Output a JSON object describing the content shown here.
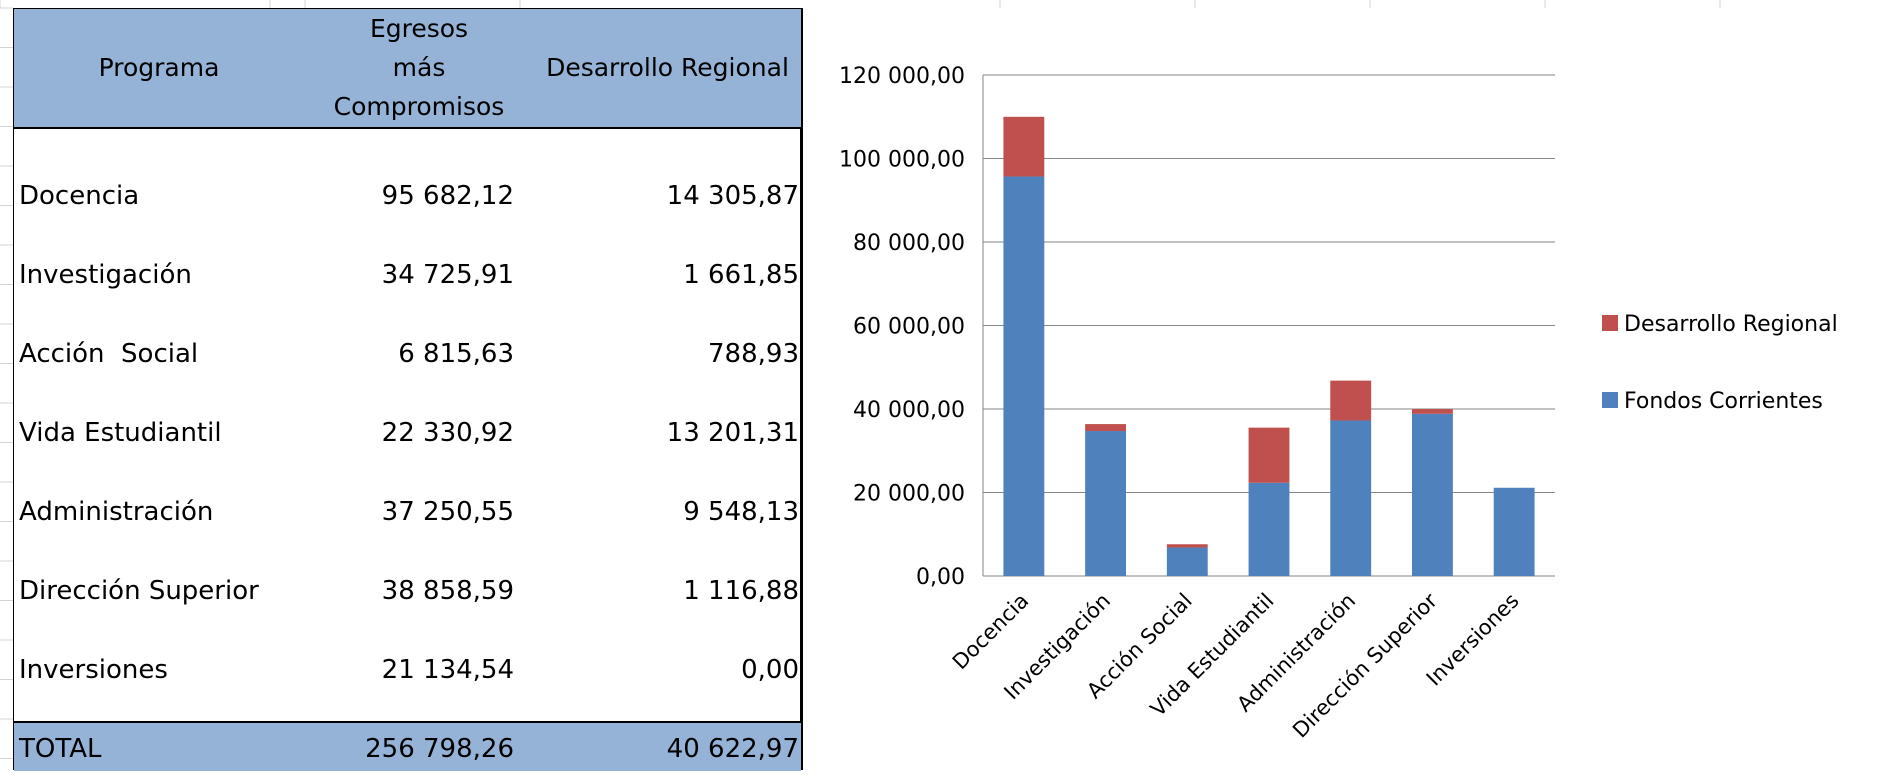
{
  "table": {
    "headers": {
      "programa": "Programa",
      "egresos_lines": [
        "Egresos",
        "más",
        "Compromisos"
      ],
      "desarrollo": "Desarrollo Regional"
    },
    "rows": [
      {
        "programa": "Docencia",
        "egresos": "95 682,12",
        "desarrollo": "14 305,87"
      },
      {
        "programa": "Investigación",
        "egresos": "34 725,91",
        "desarrollo": "1 661,85"
      },
      {
        "programa": "Acción  Social",
        "egresos": "6 815,63",
        "desarrollo": "788,93"
      },
      {
        "programa": "Vida Estudiantil",
        "egresos": "22 330,92",
        "desarrollo": "13 201,31"
      },
      {
        "programa": "Administración",
        "egresos": "37 250,55",
        "desarrollo": "9 548,13"
      },
      {
        "programa": "Dirección Superior",
        "egresos": "38 858,59",
        "desarrollo": "1 116,88"
      },
      {
        "programa": "Inversiones",
        "egresos": "21 134,54",
        "desarrollo": "0,00"
      }
    ],
    "total": {
      "label": "TOTAL",
      "egresos": "256 798,26",
      "desarrollo": "40 622,97"
    }
  },
  "chart_data": {
    "type": "bar",
    "stacked": true,
    "categories": [
      "Docencia",
      "Investigación",
      "Acción  Social",
      "Vida Estudiantil",
      "Administración",
      "Dirección Superior",
      "Inversiones"
    ],
    "series": [
      {
        "name": "Fondos Corrientes",
        "color": "#4f81bd",
        "values": [
          95682.12,
          34725.91,
          6815.63,
          22330.92,
          37250.55,
          38858.59,
          21134.54
        ]
      },
      {
        "name": "Desarrollo Regional",
        "color": "#c0504d",
        "values": [
          14305.87,
          1661.85,
          788.93,
          13201.31,
          9548.13,
          1116.88,
          0
        ]
      }
    ],
    "ylim": [
      0,
      120000
    ],
    "yticks": [
      0,
      20000,
      40000,
      60000,
      80000,
      100000,
      120000
    ],
    "ytick_labels": [
      "0,00",
      "20 000,00",
      "40 000,00",
      "60 000,00",
      "80 000,00",
      "100 000,00",
      "120 000,00"
    ],
    "grid": true,
    "legend": [
      "Desarrollo Regional",
      "Fondos Corrientes"
    ],
    "legend_position": "right"
  }
}
